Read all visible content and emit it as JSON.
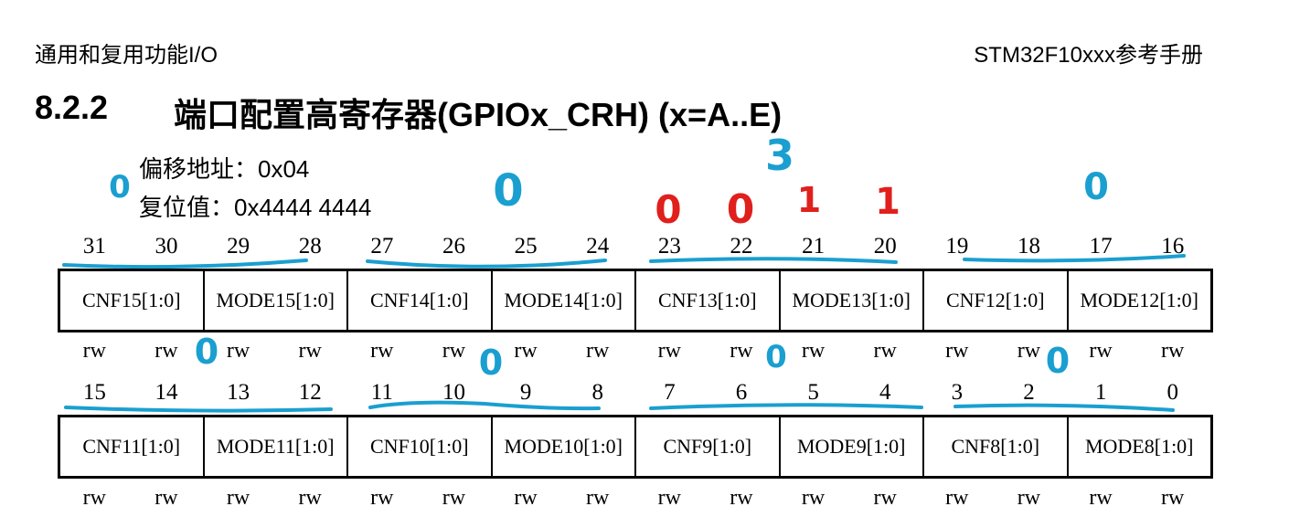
{
  "header": {
    "left": "通用和复用功能I/O",
    "right": "STM32F10xxx参考手册"
  },
  "section": {
    "number": "8.2.2",
    "title": "端口配置高寄存器(GPIOx_CRH) (x=A..E)"
  },
  "info": {
    "offset_label": "偏移地址：",
    "offset_value": "0x04",
    "reset_label": "复位值：",
    "reset_value": "0x4444 4444"
  },
  "upper": {
    "bits": [
      "31",
      "30",
      "29",
      "28",
      "27",
      "26",
      "25",
      "24",
      "23",
      "22",
      "21",
      "20",
      "19",
      "18",
      "17",
      "16"
    ],
    "fields": [
      "CNF15[1:0]",
      "MODE15[1:0]",
      "CNF14[1:0]",
      "MODE14[1:0]",
      "CNF13[1:0]",
      "MODE13[1:0]",
      "CNF12[1:0]",
      "MODE12[1:0]"
    ],
    "access": [
      "rw",
      "rw",
      "rw",
      "rw",
      "rw",
      "rw",
      "rw",
      "rw",
      "rw",
      "rw",
      "rw",
      "rw",
      "rw",
      "rw",
      "rw",
      "rw"
    ]
  },
  "lower": {
    "bits": [
      "15",
      "14",
      "13",
      "12",
      "11",
      "10",
      "9",
      "8",
      "7",
      "6",
      "5",
      "4",
      "3",
      "2",
      "1",
      "0"
    ],
    "fields": [
      "CNF11[1:0]",
      "MODE11[1:0]",
      "CNF10[1:0]",
      "MODE10[1:0]",
      "CNF9[1:0]",
      "MODE9[1:0]",
      "CNF8[1:0]",
      "MODE8[1:0]"
    ],
    "access": [
      "rw",
      "rw",
      "rw",
      "rw",
      "rw",
      "rw",
      "rw",
      "rw",
      "rw",
      "rw",
      "rw",
      "rw",
      "rw",
      "rw",
      "rw",
      "rw"
    ]
  },
  "annotations": {
    "colors": {
      "blue": "#1a9fd0",
      "red": "#e0201c"
    },
    "handwritten": [
      {
        "text": "0",
        "color": "blue"
      },
      {
        "text": "0",
        "color": "blue"
      },
      {
        "text": "3",
        "color": "blue"
      },
      {
        "text": "0",
        "color": "red"
      },
      {
        "text": "0",
        "color": "red"
      },
      {
        "text": "1",
        "color": "red"
      },
      {
        "text": "1",
        "color": "red"
      },
      {
        "text": "0",
        "color": "blue"
      },
      {
        "text": "0",
        "color": "blue"
      },
      {
        "text": "0",
        "color": "blue"
      },
      {
        "text": "0",
        "color": "blue"
      },
      {
        "text": "0",
        "color": "blue"
      }
    ]
  }
}
